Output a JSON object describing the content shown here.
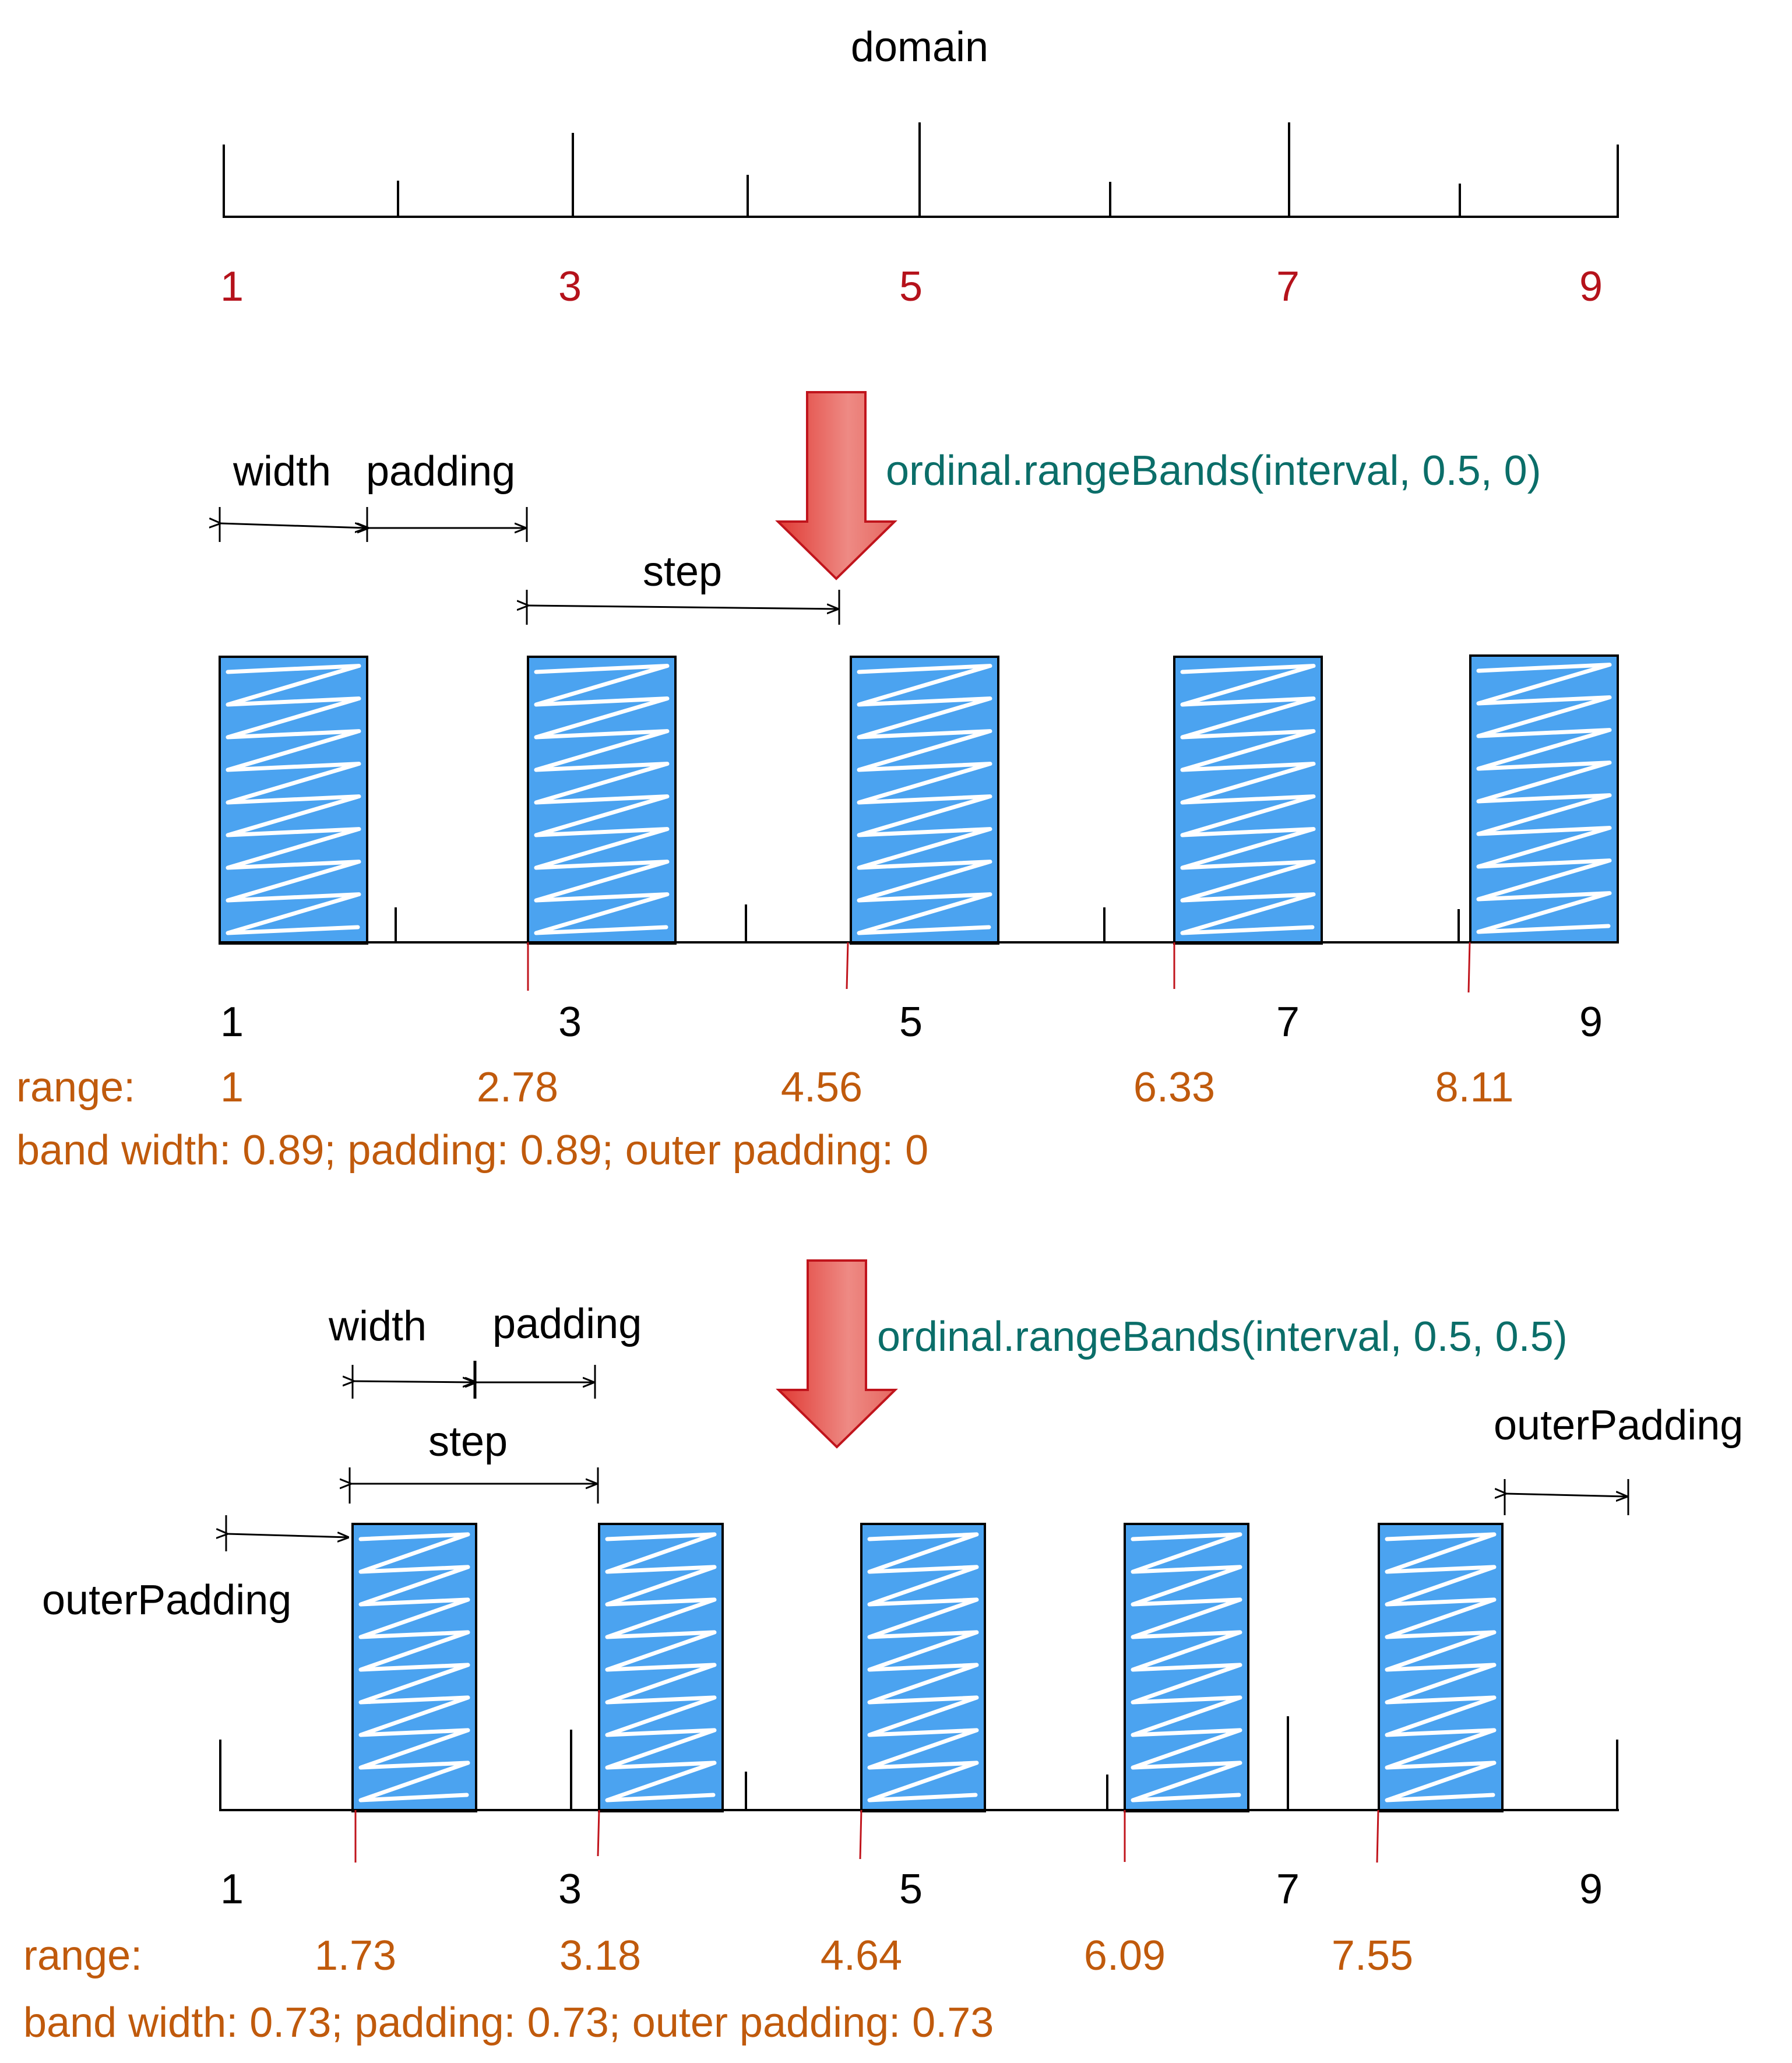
{
  "colors": {
    "domain_numbers": "#b5121b",
    "range_text": "#c05a0c",
    "code_text": "#0b6e69",
    "band_fill": "#4ba3f0",
    "band_scribble": "#ffffff",
    "arrow_fill": "#e05a52",
    "range_marker": "#c0141c"
  },
  "domain_section": {
    "title": "domain",
    "numbers": [
      "1",
      "3",
      "5",
      "7",
      "9"
    ]
  },
  "section1": {
    "code": "ordinal.rangeBands(interval, 0.5, 0)",
    "width_label": "width",
    "padding_label": "padding",
    "step_label": "step",
    "axis_numbers": [
      "1",
      "3",
      "5",
      "7",
      "9"
    ],
    "range_label": "range:",
    "range_values": [
      "1",
      "2.78",
      "4.56",
      "6.33",
      "8.11"
    ],
    "summary": "band width: 0.89; padding: 0.89; outer padding: 0"
  },
  "section2": {
    "code": "ordinal.rangeBands(interval, 0.5, 0.5)",
    "width_label": "width",
    "padding_label": "padding",
    "step_label": "step",
    "outer_padding_left_label": "outerPadding",
    "outer_padding_right_label": "outerPadding",
    "axis_numbers": [
      "1",
      "3",
      "5",
      "7",
      "9"
    ],
    "range_label": "range:",
    "range_values": [
      "1.73",
      "3.18",
      "4.64",
      "6.09",
      "7.55"
    ],
    "summary": "band width: 0.73; padding: 0.73; outer padding: 0.73"
  }
}
